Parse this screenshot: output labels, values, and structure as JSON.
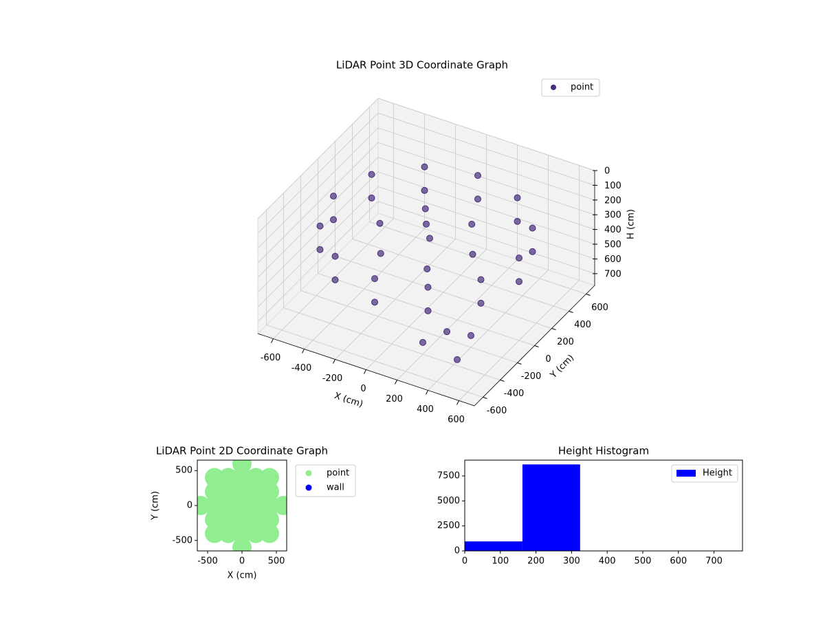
{
  "chart_data": [
    {
      "type": "scatter3d",
      "title": "LiDAR Point 3D Coordinate Graph",
      "legend": "upper right",
      "xlabel": "X (cm)",
      "ylabel": "Y (cm)",
      "zlabel": "H (cm)",
      "xlim": [
        -700,
        700
      ],
      "ylim": [
        -700,
        700
      ],
      "zlim": [
        0,
        780
      ],
      "z_inverted": true,
      "xticks": [
        -600,
        -400,
        -200,
        0,
        200,
        400,
        600
      ],
      "yticks": [
        -600,
        -400,
        -200,
        0,
        200,
        400,
        600
      ],
      "zticks": [
        0,
        100,
        200,
        300,
        400,
        500,
        600,
        700
      ],
      "series": [
        {
          "name": "point",
          "color": "#472d7b",
          "x": [
            600,
            520,
            300,
            0,
            -300,
            -520,
            -600,
            -520,
            -300,
            0,
            300,
            520,
            600,
            520,
            300,
            0,
            -300,
            -520,
            -600,
            -520,
            -300,
            0,
            300,
            520,
            300,
            150,
            -150,
            -300,
            -150,
            150,
            0,
            50,
            300,
            400,
            200,
            450
          ],
          "y": [
            0,
            300,
            520,
            600,
            520,
            300,
            0,
            -300,
            -520,
            -600,
            -520,
            -300,
            0,
            300,
            520,
            600,
            520,
            300,
            0,
            -300,
            -520,
            -600,
            -520,
            -300,
            0,
            260,
            260,
            0,
            -260,
            -260,
            0,
            -50,
            -300,
            -200,
            -400,
            -450
          ],
          "z": [
            220,
            220,
            220,
            220,
            220,
            220,
            220,
            220,
            220,
            220,
            220,
            220,
            380,
            380,
            380,
            380,
            380,
            380,
            380,
            380,
            380,
            380,
            380,
            380,
            300,
            300,
            300,
            300,
            300,
            300,
            200,
            250,
            650,
            700,
            700,
            700
          ]
        }
      ]
    },
    {
      "type": "scatter",
      "title": "LiDAR Point 2D Coordinate Graph",
      "xlabel": "X (cm)",
      "ylabel": "Y (cm)",
      "xlim": [
        -650,
        650
      ],
      "ylim": [
        -650,
        650
      ],
      "xticks": [
        -500,
        0,
        500
      ],
      "yticks": [
        -500,
        0,
        500
      ],
      "series": [
        {
          "name": "point",
          "color": "#90ee90",
          "x": [
            0,
            -400,
            -200,
            0,
            200,
            400,
            -400,
            -200,
            0,
            200,
            400,
            -600,
            -400,
            -200,
            0,
            200,
            400,
            600,
            -400,
            -200,
            0,
            200,
            400,
            -400,
            -200,
            0,
            200,
            400,
            0
          ],
          "y": [
            600,
            400,
            400,
            400,
            400,
            400,
            200,
            200,
            200,
            200,
            200,
            0,
            0,
            0,
            0,
            0,
            0,
            0,
            -200,
            -200,
            -200,
            -200,
            -200,
            -400,
            -400,
            -400,
            -400,
            -400,
            -600
          ]
        },
        {
          "name": "wall",
          "color": "#0000ff",
          "x": [],
          "y": []
        }
      ]
    },
    {
      "type": "histogram",
      "title": "Height Histogram",
      "xlim": [
        0,
        780
      ],
      "ylim": [
        0,
        9080
      ],
      "xticks": [
        0,
        100,
        200,
        300,
        400,
        500,
        600,
        700
      ],
      "yticks": [
        0,
        2500,
        5000,
        7500
      ],
      "bins": [
        0,
        162,
        324,
        486,
        648,
        810
      ],
      "series": [
        {
          "name": "Height",
          "color": "#0000ff",
          "values": [
            950,
            8650,
            5,
            3,
            2
          ]
        }
      ]
    }
  ]
}
